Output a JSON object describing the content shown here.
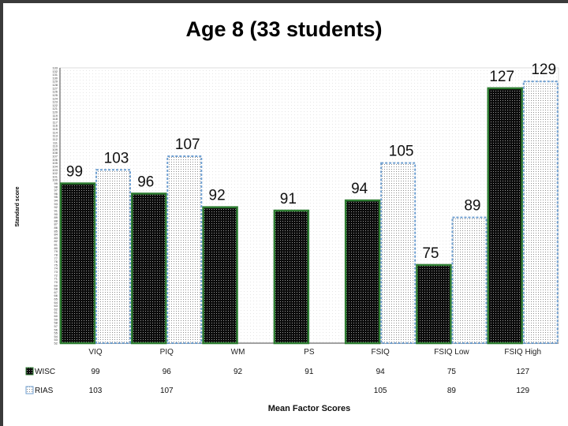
{
  "chart_data": {
    "type": "bar",
    "title": "Age 8 (33 students)",
    "xlabel": "Mean Factor Scores",
    "ylabel": "Standard score",
    "ylim": [
      52,
      133
    ],
    "categories": [
      "VIQ",
      "PIQ",
      "WM",
      "PS",
      "FSIQ",
      "FSIQ Low",
      "FSIQ High"
    ],
    "series": [
      {
        "name": "WISC",
        "values": [
          99,
          96,
          92,
          91,
          94,
          75,
          127
        ]
      },
      {
        "name": "RIAS",
        "values": [
          103,
          107,
          null,
          null,
          105,
          89,
          129
        ]
      }
    ],
    "data_labels": true,
    "data_table": true,
    "grid": false
  },
  "colors": {
    "wisc_fill": "#0d0d0d",
    "wisc_border": "#2e7d32",
    "rias_fill": "#f7f7f7",
    "rias_border": "#6f9fd0",
    "frame": "#3a3a3a"
  }
}
